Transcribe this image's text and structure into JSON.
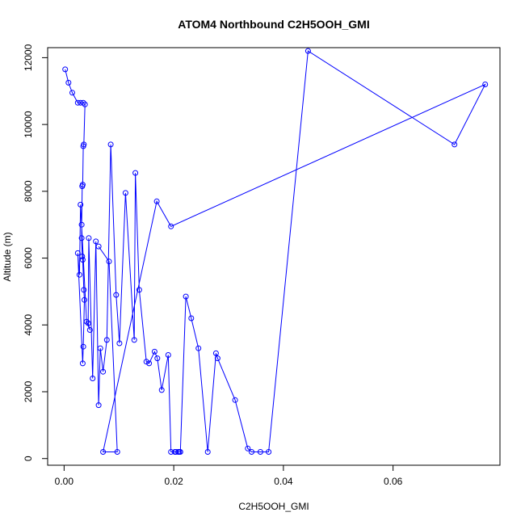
{
  "chart_data": {
    "type": "scatter",
    "title": "ATOM4 Northbound C2H5OOH_GMI",
    "xlabel": "C2H5OOH_GMI",
    "ylabel": "Altitude (m)",
    "xlim": [
      -0.003,
      0.0795
    ],
    "ylim": [
      -200,
      12300
    ],
    "x_ticks": [
      0.0,
      0.02,
      0.04,
      0.06
    ],
    "x_tick_labels": [
      "0.00",
      "0.02",
      "0.04",
      "0.06"
    ],
    "y_ticks": [
      0,
      2000,
      4000,
      6000,
      8000,
      10000,
      12000
    ],
    "y_tick_labels": [
      "0",
      "2000",
      "4000",
      "6000",
      "8000",
      "10000",
      "12000"
    ],
    "grid": false,
    "connected": true,
    "marker": "open-circle",
    "color": "#0000ff",
    "series": [
      {
        "x": [
          0.0002,
          0.0008,
          0.0015,
          0.0025,
          0.003,
          0.0035,
          0.0038,
          0.0036,
          0.0035,
          0.0034,
          0.0033,
          0.0032,
          0.0032,
          0.0033,
          0.0034,
          0.0036,
          0.0037,
          0.0035,
          0.0034,
          0.0025,
          0.0028,
          0.003,
          0.0041,
          0.0047,
          0.0044,
          0.0045,
          0.0052,
          0.0058,
          0.0063,
          0.0066,
          0.0071,
          0.0078,
          0.0085,
          0.0095,
          0.0101,
          0.0112,
          0.0128,
          0.013,
          0.0137,
          0.015,
          0.0155,
          0.0165,
          0.017,
          0.0178,
          0.019,
          0.0195,
          0.0202,
          0.0204,
          0.0208,
          0.021,
          0.0212,
          0.0222,
          0.0232,
          0.0245,
          0.0262,
          0.0277,
          0.028,
          0.0312,
          0.0335,
          0.0342,
          0.0358,
          0.0373,
          0.0445,
          0.0712,
          0.0768,
          0.0195,
          0.0169,
          0.0071,
          0.0097,
          0.0082,
          0.0063
        ],
        "y": [
          11650,
          11250,
          10950,
          10650,
          10650,
          10650,
          10600,
          9400,
          9350,
          8200,
          8150,
          7000,
          6600,
          6050,
          5950,
          5050,
          4750,
          3350,
          2850,
          6150,
          5500,
          7600,
          4100,
          3850,
          4050,
          6600,
          2400,
          6500,
          1600,
          3300,
          2600,
          3550,
          9400,
          4900,
          3450,
          7950,
          3550,
          8550,
          5050,
          2900,
          2850,
          3200,
          3000,
          2050,
          3100,
          200,
          200,
          200,
          200,
          200,
          200,
          4850,
          4200,
          3300,
          200,
          3150,
          3000,
          1750,
          300,
          200,
          200,
          200,
          12200,
          9400,
          11200,
          6950,
          7700,
          200,
          200,
          5900,
          6350
        ]
      }
    ]
  }
}
